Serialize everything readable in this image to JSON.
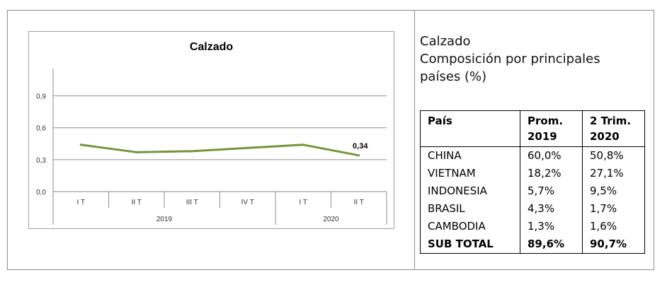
{
  "chart_data": {
    "type": "line",
    "title": "Calzado",
    "categories": [
      "I T",
      "II T",
      "III T",
      "IV T",
      "I T",
      "II T"
    ],
    "year_groups": [
      {
        "label": "2019",
        "span": 4
      },
      {
        "label": "2020",
        "span": 2
      }
    ],
    "series": [
      {
        "values": [
          0.44,
          0.37,
          0.38,
          0.41,
          0.44,
          0.34
        ],
        "color": "#77933c"
      }
    ],
    "y_ticks": [
      "0,0",
      "0,3",
      "0,6",
      "0,9"
    ],
    "ylim": [
      0,
      1.05
    ],
    "grid": true,
    "annotations": [
      {
        "index": 5,
        "text": "0,34"
      }
    ]
  },
  "side": {
    "title_line1": "Calzado",
    "title_line2": "Composición por principales",
    "title_line3": "países (%)"
  },
  "table": {
    "headers": [
      {
        "line1": "País",
        "line2": ""
      },
      {
        "line1": "Prom.",
        "line2": "2019"
      },
      {
        "line1": "2 Trim.",
        "line2": "2020"
      }
    ],
    "rows": [
      [
        "CHINA",
        "60,0%",
        "50,8%"
      ],
      [
        "VIETNAM",
        "18,2%",
        "27,1%"
      ],
      [
        "INDONESIA",
        "5,7%",
        "9,5%"
      ],
      [
        "BRASIL",
        "4,3%",
        "1,7%"
      ],
      [
        "CAMBODIA",
        "1,3%",
        "1,6%"
      ]
    ],
    "total": [
      "SUB TOTAL",
      "89,6%",
      "90,7%"
    ]
  }
}
